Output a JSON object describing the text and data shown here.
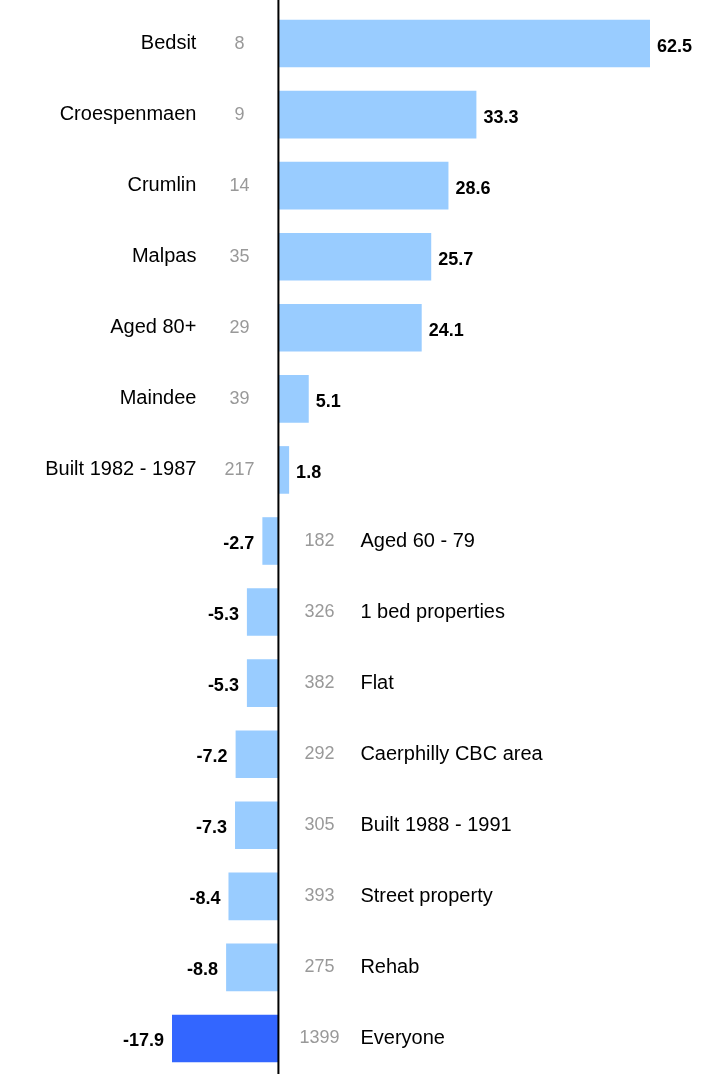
{
  "chart_data": {
    "type": "bar",
    "orientation": "horizontal",
    "categories": [
      "Bedsit",
      "Croespenmaen",
      "Crumlin",
      "Malpas",
      "Aged 80+",
      "Maindee",
      "Built 1982 - 1987",
      "Aged 60 - 79",
      "1 bed properties",
      "Flat",
      "Caerphilly CBC area",
      "Built 1988 - 1991",
      "Street property",
      "Rehab",
      "Everyone"
    ],
    "values": [
      62.5,
      33.3,
      28.6,
      25.7,
      24.1,
      5.1,
      1.8,
      -2.7,
      -5.3,
      -5.3,
      -7.2,
      -7.3,
      -8.4,
      -8.8,
      -17.9
    ],
    "colors": [
      "#99ccff",
      "#99ccff",
      "#99ccff",
      "#99ccff",
      "#99ccff",
      "#99ccff",
      "#99ccff",
      "#99ccff",
      "#99ccff",
      "#99ccff",
      "#99ccff",
      "#99ccff",
      "#99ccff",
      "#99ccff",
      "#3366ff"
    ],
    "data_labels": true,
    "legend": false,
    "annotations": [
      "8",
      "9",
      "14",
      "35",
      "29",
      "39",
      "217",
      "182",
      "326",
      "382",
      "292",
      "305",
      "393",
      "275",
      "1399"
    ]
  }
}
